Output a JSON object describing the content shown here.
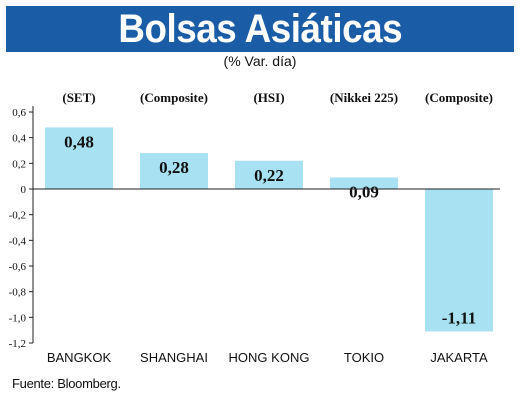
{
  "header": {
    "title": "Bolsas Asiáticas",
    "subtitle": "(% Var. día)"
  },
  "source": "Fuente: Bloomberg.",
  "colors": {
    "title_bg": "#1a5da6",
    "bar_fill": "#a8e2f2",
    "bar_stroke": "#ffffff"
  },
  "chart_data": {
    "type": "bar",
    "categories": [
      "BANGKOK",
      "SHANGHAI",
      "HONG KONG",
      "TOKIO",
      "JAKARTA"
    ],
    "index_names": [
      "(SET)",
      "(Composite)",
      "(HSI)",
      "(Nikkei 225)",
      "(Composite)"
    ],
    "values": [
      0.48,
      0.28,
      0.22,
      0.09,
      -1.11
    ],
    "value_labels": [
      "0,48",
      "0,28",
      "0,22",
      "0,09",
      "-1,11"
    ],
    "yticks": [
      0.6,
      0.4,
      0.2,
      0,
      -0.2,
      -0.4,
      -0.6,
      -0.8,
      -1.0,
      -1.2
    ],
    "ytick_labels": [
      "0,6",
      "0,4",
      "0,2",
      "0",
      "-0,2",
      "-0,4",
      "-0,6",
      "-0,8",
      "-1,0",
      "-1,2"
    ],
    "ylim": [
      -1.2,
      0.6
    ],
    "grid": false,
    "xlabel": "",
    "ylabel": ""
  }
}
